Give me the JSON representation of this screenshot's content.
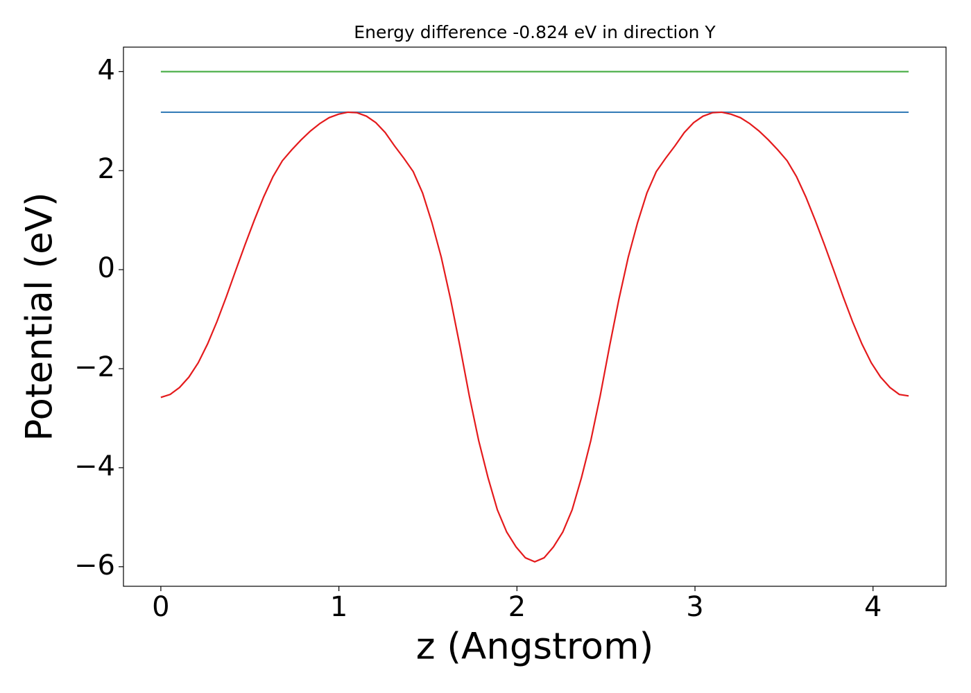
{
  "chart_data": {
    "type": "line",
    "title": "Energy difference -0.824 eV in direction Y",
    "x_label": "z (Angstrom)",
    "y_label": "Potential (eV)",
    "xlim": [
      -0.21,
      4.41
    ],
    "ylim": [
      -6.395,
      4.495
    ],
    "xticks": [
      0,
      1,
      2,
      3,
      4
    ],
    "yticks": [
      {
        "value": -6,
        "label": "−6"
      },
      {
        "value": -4,
        "label": "−4"
      },
      {
        "value": -2,
        "label": "−2"
      },
      0,
      2,
      4
    ],
    "grid": false,
    "series": [
      {
        "color": "#4daf4a",
        "x": [
          0,
          4.2
        ],
        "values": [
          4,
          4
        ]
      },
      {
        "color": "#377eb8",
        "x": [
          0,
          4.2
        ],
        "values": [
          3.18,
          3.18
        ]
      },
      {
        "color": "#e41a1c",
        "x": [
          0,
          0.0525,
          0.105,
          0.1575,
          0.21,
          0.2625,
          0.315,
          0.3675,
          0.42,
          0.4725,
          0.525,
          0.5775,
          0.63,
          0.6825,
          0.735,
          0.7875,
          0.84,
          0.8925,
          0.945,
          0.9975,
          1.05,
          1.1025,
          1.155,
          1.2075,
          1.26,
          1.3125,
          1.365,
          1.4175,
          1.47,
          1.5225,
          1.575,
          1.6275,
          1.68,
          1.7325,
          1.785,
          1.8375,
          1.89,
          1.9425,
          1.995,
          2.0475,
          2.1,
          2.1525,
          2.205,
          2.2575,
          2.31,
          2.3625,
          2.415,
          2.4675,
          2.52,
          2.5725,
          2.625,
          2.6775,
          2.73,
          2.7825,
          2.835,
          2.8875,
          2.94,
          2.9925,
          3.045,
          3.0975,
          3.15,
          3.2025,
          3.255,
          3.3075,
          3.36,
          3.4125,
          3.465,
          3.5175,
          3.57,
          3.6225,
          3.675,
          3.7275,
          3.78,
          3.8325,
          3.885,
          3.9375,
          3.99,
          4.0425,
          4.095,
          4.1475,
          4.2
        ],
        "values": [
          -2.58,
          -2.52,
          -2.38,
          -2.17,
          -1.88,
          -1.5,
          -1.05,
          -0.55,
          -0.02,
          0.5,
          1.0,
          1.47,
          1.88,
          2.2,
          2.42,
          2.62,
          2.8,
          2.95,
          3.07,
          3.14,
          3.18,
          3.17,
          3.1,
          2.97,
          2.77,
          2.5,
          2.25,
          1.98,
          1.55,
          0.95,
          0.25,
          -0.6,
          -1.55,
          -2.55,
          -3.45,
          -4.2,
          -4.85,
          -5.3,
          -5.6,
          -5.82,
          -5.9,
          -5.82,
          -5.6,
          -5.3,
          -4.85,
          -4.2,
          -3.45,
          -2.55,
          -1.55,
          -0.6,
          0.25,
          0.95,
          1.55,
          1.98,
          2.25,
          2.5,
          2.77,
          2.97,
          3.1,
          3.17,
          3.18,
          3.14,
          3.07,
          2.95,
          2.8,
          2.62,
          2.42,
          2.2,
          1.88,
          1.47,
          1.0,
          0.5,
          -0.02,
          -0.55,
          -1.05,
          -1.5,
          -1.88,
          -2.17,
          -2.38,
          -2.52,
          -2.55
        ]
      }
    ]
  }
}
